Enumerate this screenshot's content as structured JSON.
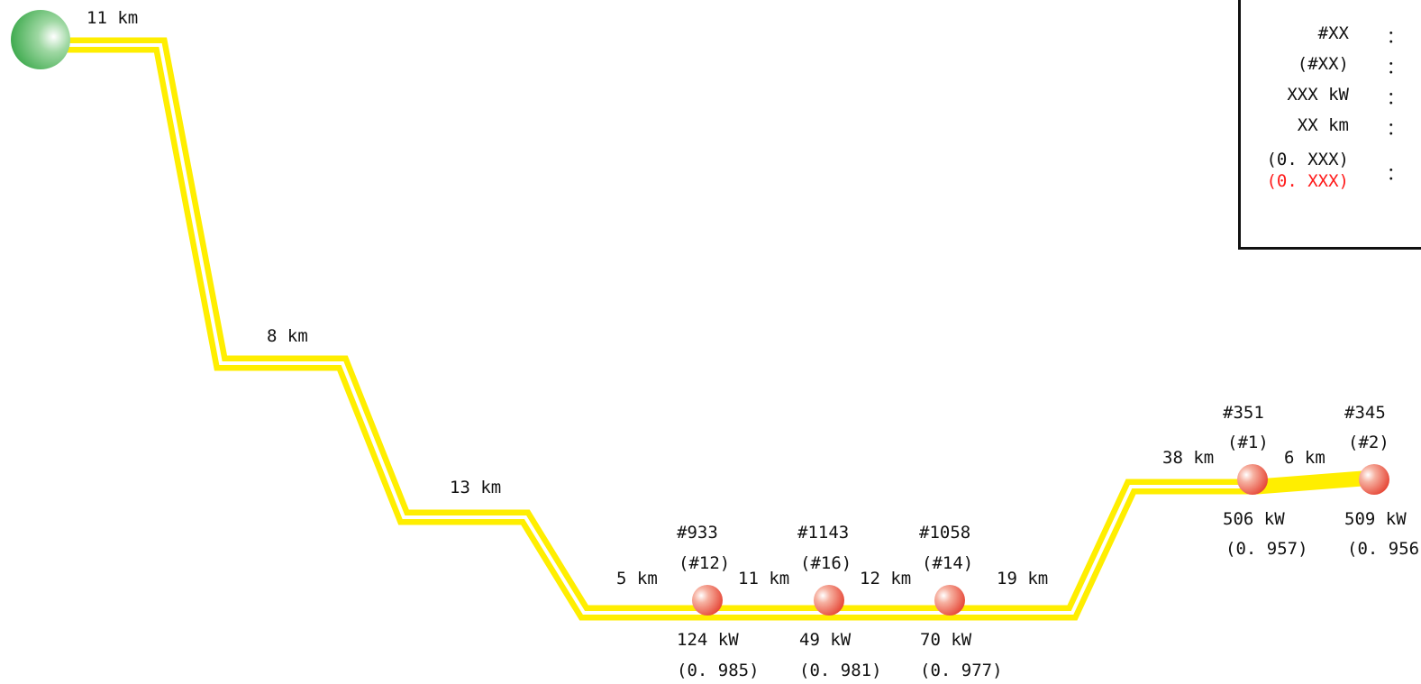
{
  "colors": {
    "line": "#ffee00",
    "source_node": "#3aa84a",
    "load_node": "#ee4433",
    "legend_red": "#ff1a1a"
  },
  "segments": [
    "11 km",
    "8 km",
    "13 km",
    "5 km",
    "11 km",
    "12 km",
    "19 km",
    "38 km",
    "6 km"
  ],
  "nodes": [
    {
      "id": "#933",
      "rank": "(#12)",
      "power": "124 kW",
      "voltage": "(0. 985)"
    },
    {
      "id": "#1143",
      "rank": "(#16)",
      "power": "49 kW",
      "voltage": "(0. 981)"
    },
    {
      "id": "#1058",
      "rank": "(#14)",
      "power": "70 kW",
      "voltage": "(0. 977)"
    },
    {
      "id": "#351",
      "rank": "(#1)",
      "power": "506 kW",
      "voltage": "(0. 957)"
    },
    {
      "id": "#345",
      "rank": "(#2)",
      "power": "509 kW",
      "voltage": "(0. 956)"
    }
  ],
  "legend": {
    "rows": [
      {
        "key": "#XX",
        "colon": "：",
        "desc": ""
      },
      {
        "key": "(#XX)",
        "colon": "：",
        "desc": ""
      },
      {
        "key": "XXX kW",
        "colon": "：",
        "desc": ""
      },
      {
        "key": "XX km",
        "colon": "：",
        "desc": ""
      },
      {
        "key": "(0. XXX)",
        "key_red": "(0. XXX)",
        "colon": "：",
        "desc": ""
      }
    ]
  }
}
